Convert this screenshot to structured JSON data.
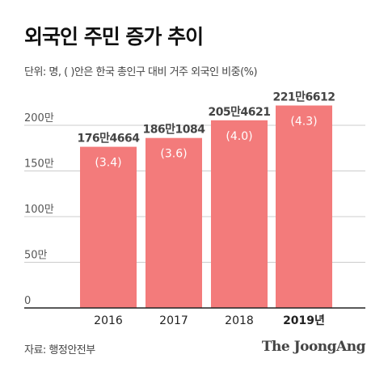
{
  "title": "외국인 주민 증가 추이",
  "unit_note": "단위: 명, ( )안은 한국 총인구 대비 거주 외국인 비중(%)",
  "source": "자료: 행정안전부",
  "brand": "The JoongAng",
  "chart_data": {
    "type": "bar",
    "categories": [
      "2016",
      "2017",
      "2018",
      "2019년"
    ],
    "values": [
      1764664,
      1861084,
      2054621,
      2216612
    ],
    "value_labels": [
      "176만4664",
      "186만1084",
      "205만4621",
      "221만6612"
    ],
    "share_labels": [
      "(3.4)",
      "(3.6)",
      "(4.0)",
      "(4.3)"
    ],
    "share_values": [
      3.4,
      3.6,
      4.0,
      4.3
    ],
    "highlight_index": 3,
    "y_ticks": [
      0,
      500000,
      1000000,
      1500000,
      2000000
    ],
    "y_tick_labels": [
      "0",
      "50만",
      "100만",
      "150만",
      "200만"
    ],
    "ylim": [
      0,
      2300000
    ],
    "grid": true,
    "bar_color": "#f37b7b",
    "grid_color": "#cccccc",
    "axis_color": "#222222",
    "share_label_color": "#ffffff"
  }
}
